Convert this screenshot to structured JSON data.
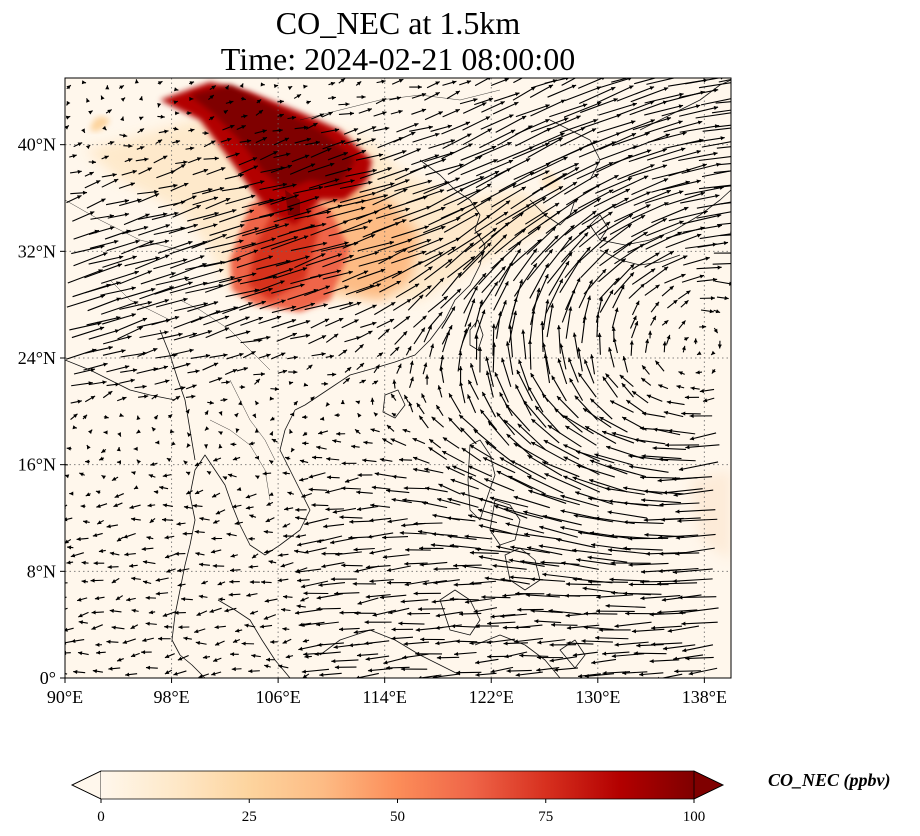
{
  "title": {
    "line1": "CO_NEC at 1.5km",
    "line2": "Time: 2024-02-21 08:00:00"
  },
  "map": {
    "lon_range": [
      90,
      140
    ],
    "lat_range": [
      0,
      45
    ],
    "x_ticks": [
      "90°E",
      "98°E",
      "106°E",
      "114°E",
      "122°E",
      "130°E",
      "138°E"
    ],
    "x_tick_values": [
      90,
      98,
      106,
      114,
      122,
      130,
      138
    ],
    "y_ticks": [
      "0°",
      "8°N",
      "16°N",
      "24°N",
      "32°N",
      "40°N"
    ],
    "y_tick_values": [
      0,
      8,
      16,
      24,
      32,
      40
    ],
    "gridlines": true,
    "field": "CO_NEC",
    "vectors": "wind arrows"
  },
  "colorbar": {
    "label": "CO_NEC (ppbv)",
    "ticks": [
      "0",
      "25",
      "50",
      "75",
      "100"
    ],
    "tick_values": [
      0,
      25,
      50,
      75,
      100
    ],
    "range": [
      0,
      100
    ],
    "colormap": "OrRd",
    "extend": "both",
    "colors": [
      "#fff7ec",
      "#fee8c8",
      "#fdd49e",
      "#fdbb84",
      "#fc8d59",
      "#ef6548",
      "#d7301f",
      "#b30000",
      "#7f0000"
    ]
  }
}
